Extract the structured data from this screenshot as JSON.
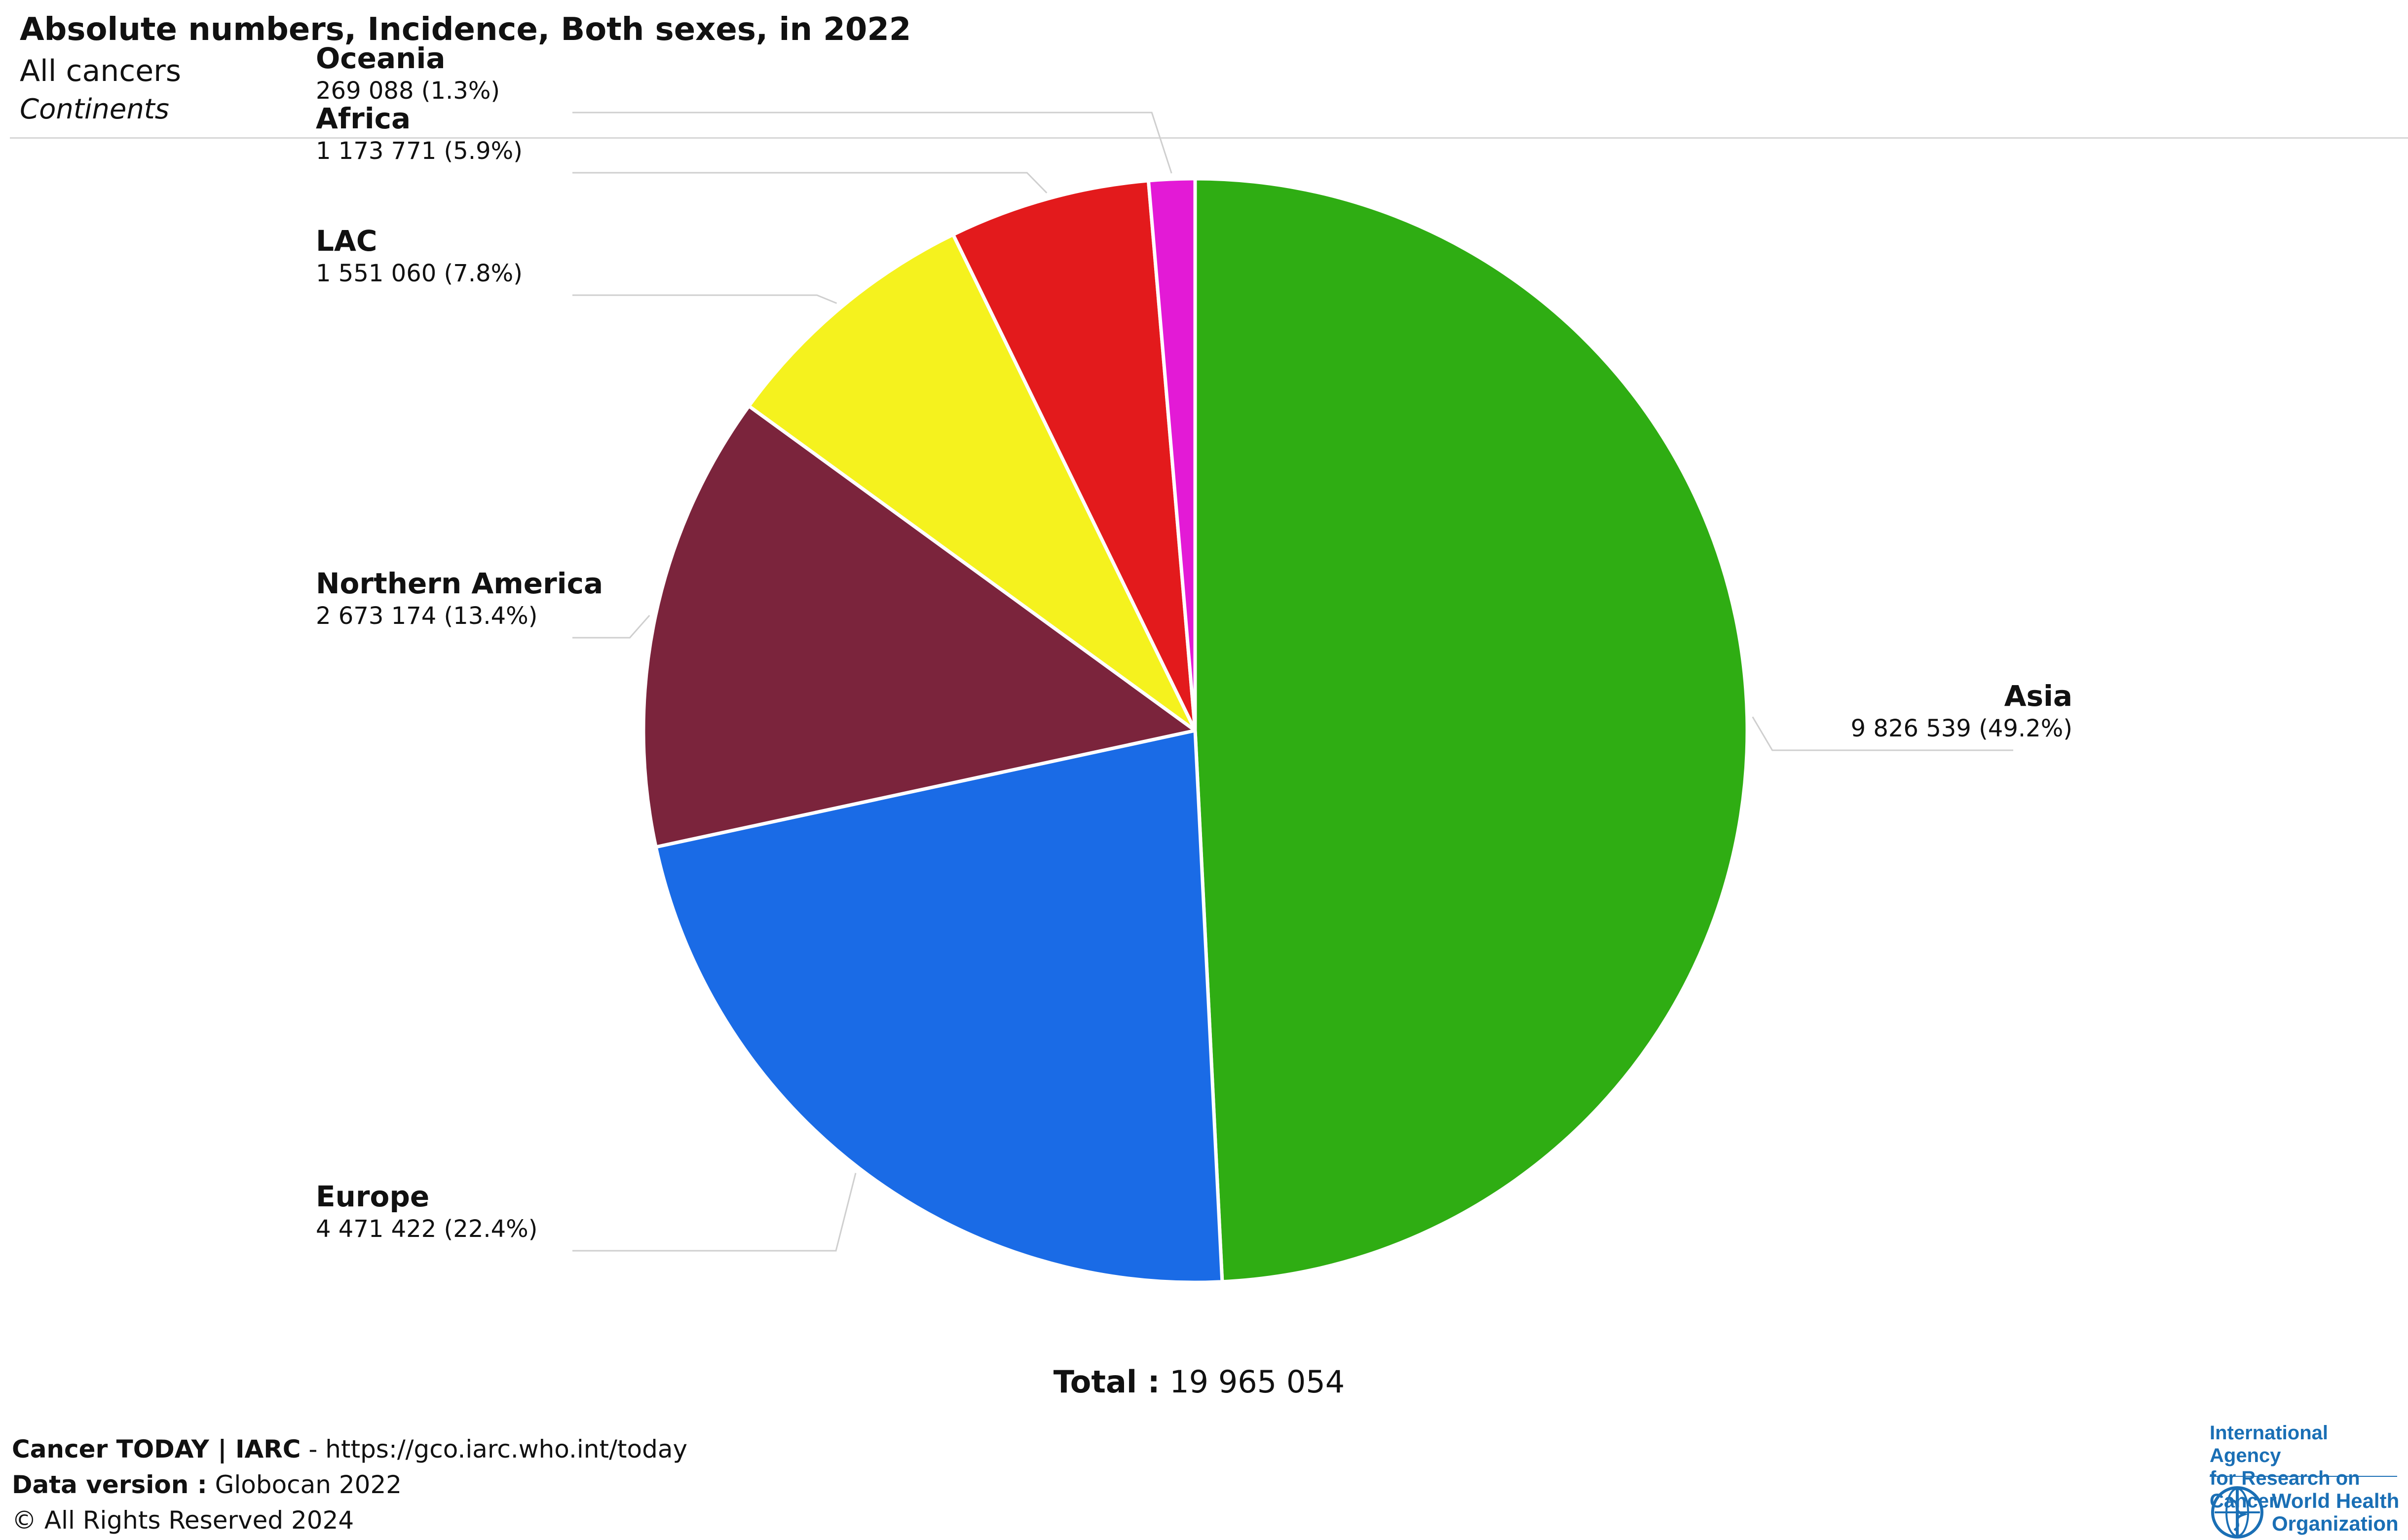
{
  "header": {
    "title": "Absolute numbers, Incidence, Both sexes, in 2022",
    "subtitle": "All cancers",
    "subtitle2": "Continents"
  },
  "chart_data": {
    "type": "pie",
    "title": "Absolute numbers, Incidence, Both sexes, in 2022",
    "start": "12 o'clock, clockwise",
    "slices": [
      {
        "name": "Asia",
        "value": 9826539,
        "value_label": "9 826 539 (49.2%)",
        "percent": 49.2,
        "color": "#2fad13"
      },
      {
        "name": "Europe",
        "value": 4471422,
        "value_label": "4 471 422 (22.4%)",
        "percent": 22.4,
        "color": "#1a6be6"
      },
      {
        "name": "Northern America",
        "value": 2673174,
        "value_label": "2 673 174 (13.4%)",
        "percent": 13.4,
        "color": "#7b243c"
      },
      {
        "name": "LAC",
        "value": 1551060,
        "value_label": "1 551 060 (7.8%)",
        "percent": 7.8,
        "color": "#f5f21e"
      },
      {
        "name": "Africa",
        "value": 1173771,
        "value_label": "1 173 771 (5.9%)",
        "percent": 5.9,
        "color": "#e31a1c"
      },
      {
        "name": "Oceania",
        "value": 269088,
        "value_label": "269 088 (1.3%)",
        "percent": 1.3,
        "color": "#e31ad6"
      }
    ],
    "total_label": "Total :",
    "total_value": "19 965 054"
  },
  "footer": {
    "line1_bold": "Cancer TODAY | IARC",
    "line1_rest": " - https://gco.iarc.who.int/today",
    "line2_bold": "Data version :",
    "line2_rest": " Globocan 2022",
    "line3": "© All Rights Reserved 2024"
  },
  "logo": {
    "iarc_line1": "International Agency",
    "iarc_line2": "for Research on Cancer",
    "who_line1": "World Health",
    "who_line2": "Organization",
    "color": "#1a6fb5"
  }
}
